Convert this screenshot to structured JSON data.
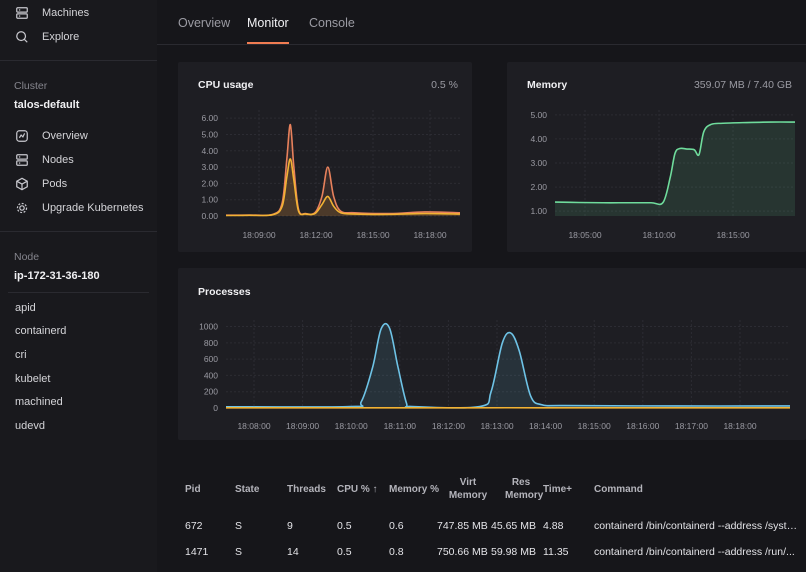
{
  "sidebar": {
    "top_items": [
      {
        "label": "Machines",
        "icon": "server-icon"
      },
      {
        "label": "Explore",
        "icon": "search-icon"
      }
    ],
    "cluster_heading": "Cluster",
    "cluster_name": "talos-default",
    "cluster_items": [
      {
        "label": "Overview",
        "icon": "overview-icon"
      },
      {
        "label": "Nodes",
        "icon": "server-icon"
      },
      {
        "label": "Pods",
        "icon": "cube-icon"
      },
      {
        "label": "Upgrade Kubernetes",
        "icon": "gear-icon"
      }
    ],
    "node_heading": "Node",
    "node_name": "ip-172-31-36-180",
    "services": [
      "apid",
      "containerd",
      "cri",
      "kubelet",
      "machined",
      "udevd"
    ]
  },
  "tabs": [
    {
      "label": "Overview",
      "active": false
    },
    {
      "label": "Monitor",
      "active": true
    },
    {
      "label": "Console",
      "active": false
    }
  ],
  "accent_color": "#f07c52",
  "cpu": {
    "title": "CPU usage",
    "value": "0.5 %"
  },
  "memory": {
    "title": "Memory",
    "value": "359.07 MB / 7.40 GB"
  },
  "processes": {
    "title": "Processes"
  },
  "chart_data": [
    {
      "type": "line",
      "title": "CPU usage",
      "x_ticks": [
        "18:09:00",
        "18:12:00",
        "18:15:00",
        "18:18:00"
      ],
      "y_ticks": [
        "0.00",
        "1.00",
        "2.00",
        "3.00",
        "4.00",
        "5.00",
        "6.00"
      ],
      "ylim": [
        0,
        6.5
      ],
      "series": [
        {
          "color": "#e8815c",
          "points": [
            [
              0,
              0.05
            ],
            [
              0.1,
              0.06
            ],
            [
              0.2,
              0.1
            ],
            [
              0.24,
              0.8
            ],
            [
              0.26,
              3.5
            ],
            [
              0.275,
              5.6
            ],
            [
              0.29,
              3
            ],
            [
              0.31,
              0.4
            ],
            [
              0.34,
              0.15
            ],
            [
              0.38,
              0.2
            ],
            [
              0.41,
              1.2
            ],
            [
              0.435,
              3.0
            ],
            [
              0.46,
              1.2
            ],
            [
              0.49,
              0.3
            ],
            [
              0.55,
              0.2
            ],
            [
              0.7,
              0.15
            ],
            [
              0.85,
              0.25
            ],
            [
              1.0,
              0.2
            ]
          ]
        },
        {
          "color": "#f2b233",
          "points": [
            [
              0,
              0.03
            ],
            [
              0.1,
              0.04
            ],
            [
              0.2,
              0.08
            ],
            [
              0.24,
              0.6
            ],
            [
              0.26,
              2.4
            ],
            [
              0.275,
              3.5
            ],
            [
              0.29,
              2.2
            ],
            [
              0.31,
              0.3
            ],
            [
              0.34,
              0.12
            ],
            [
              0.38,
              0.15
            ],
            [
              0.41,
              0.7
            ],
            [
              0.435,
              1.2
            ],
            [
              0.46,
              0.6
            ],
            [
              0.49,
              0.2
            ],
            [
              0.55,
              0.12
            ],
            [
              0.7,
              0.1
            ],
            [
              0.85,
              0.15
            ],
            [
              1.0,
              0.12
            ]
          ]
        }
      ]
    },
    {
      "type": "area",
      "title": "Memory",
      "x_ticks": [
        "18:05:00",
        "18:10:00",
        "18:15:00"
      ],
      "y_ticks": [
        "1.00",
        "2.00",
        "3.00",
        "4.00",
        "5.00"
      ],
      "ylim": [
        0.8,
        5.2
      ],
      "series": [
        {
          "color": "#6fdc9c",
          "points": [
            [
              0,
              1.38
            ],
            [
              0.1,
              1.36
            ],
            [
              0.2,
              1.35
            ],
            [
              0.3,
              1.35
            ],
            [
              0.4,
              1.35
            ],
            [
              0.45,
              1.36
            ],
            [
              0.48,
              2.4
            ],
            [
              0.5,
              3.4
            ],
            [
              0.52,
              3.6
            ],
            [
              0.55,
              3.58
            ],
            [
              0.58,
              3.55
            ],
            [
              0.6,
              3.35
            ],
            [
              0.62,
              4.3
            ],
            [
              0.65,
              4.6
            ],
            [
              0.7,
              4.65
            ],
            [
              0.8,
              4.68
            ],
            [
              0.9,
              4.7
            ],
            [
              1.0,
              4.7
            ]
          ]
        }
      ]
    },
    {
      "type": "area",
      "title": "Processes",
      "x_ticks": [
        "18:08:00",
        "18:09:00",
        "18:10:00",
        "18:11:00",
        "18:12:00",
        "18:13:00",
        "18:14:00",
        "18:15:00",
        "18:16:00",
        "18:17:00",
        "18:18:00"
      ],
      "y_ticks": [
        "0",
        "200",
        "400",
        "600",
        "800",
        "1000"
      ],
      "ylim": [
        0,
        1080
      ],
      "series": [
        {
          "color": "#6ec3e6",
          "points": [
            [
              0,
              15
            ],
            [
              0.22,
              18
            ],
            [
              0.24,
              80
            ],
            [
              0.26,
              500
            ],
            [
              0.275,
              970
            ],
            [
              0.29,
              980
            ],
            [
              0.305,
              500
            ],
            [
              0.32,
              60
            ],
            [
              0.33,
              18
            ],
            [
              0.45,
              18
            ],
            [
              0.47,
              200
            ],
            [
              0.49,
              800
            ],
            [
              0.505,
              920
            ],
            [
              0.52,
              700
            ],
            [
              0.54,
              150
            ],
            [
              0.56,
              40
            ],
            [
              0.6,
              30
            ],
            [
              0.8,
              25
            ],
            [
              1.0,
              25
            ]
          ]
        },
        {
          "color": "#f2b233",
          "points": [
            [
              0,
              2
            ],
            [
              0.3,
              2
            ],
            [
              0.5,
              3
            ],
            [
              0.7,
              2
            ],
            [
              1.0,
              2
            ]
          ]
        }
      ]
    }
  ],
  "table": {
    "headers": [
      {
        "label": "Pid"
      },
      {
        "label": "State"
      },
      {
        "label": "Threads"
      },
      {
        "label": "CPU % ↑"
      },
      {
        "label": "Memory %"
      },
      {
        "label": "Virt\nMemory"
      },
      {
        "label": "Res\nMemory"
      },
      {
        "label": "Time+"
      },
      {
        "label": "Command"
      }
    ],
    "rows": [
      [
        "672",
        "S",
        "9",
        "0.5",
        "0.6",
        "747.85 MB",
        "45.65 MB",
        "4.88",
        "containerd /bin/containerd --address /syste..."
      ],
      [
        "1471",
        "S",
        "14",
        "0.5",
        "0.8",
        "750.66 MB",
        "59.98 MB",
        "11.35",
        "containerd /bin/containerd --address /run/..."
      ]
    ]
  }
}
